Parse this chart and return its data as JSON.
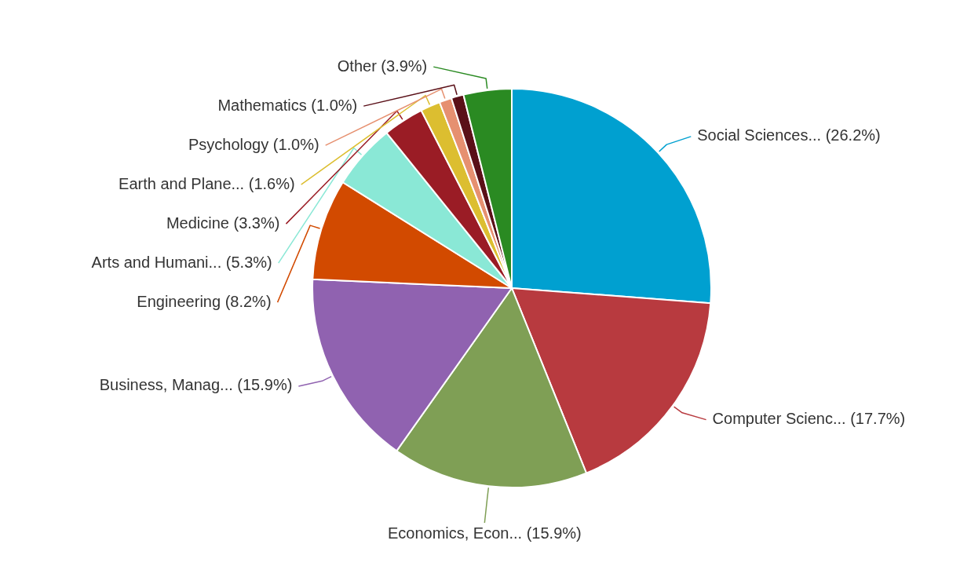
{
  "chart_data": {
    "type": "pie",
    "categories": [
      "Social Sciences...",
      "Computer Scienc...",
      "Economics, Econ...",
      "Business, Manag...",
      "Engineering",
      "Arts and Humani...",
      "Medicine",
      "Earth and Plane...",
      "Psychology",
      "Mathematics",
      "Other"
    ],
    "values": [
      26.2,
      17.7,
      15.9,
      15.9,
      8.2,
      5.3,
      3.3,
      1.6,
      1.0,
      1.0,
      3.9
    ],
    "value_labels": [
      "(26.2%)",
      "(17.7%)",
      "(15.9%)",
      "(15.9%)",
      "(8.2%)",
      "(5.3%)",
      "(3.3%)",
      "(1.6%)",
      "(1.0%)",
      "(1.0%)",
      "(3.9%)"
    ],
    "colors": [
      "#00a0d0",
      "#b83a3f",
      "#7f9f55",
      "#9062b0",
      "#d24a00",
      "#8ae8d6",
      "#9a1c25",
      "#dcbe30",
      "#e69070",
      "#5a1018",
      "#2a8a22"
    ]
  }
}
